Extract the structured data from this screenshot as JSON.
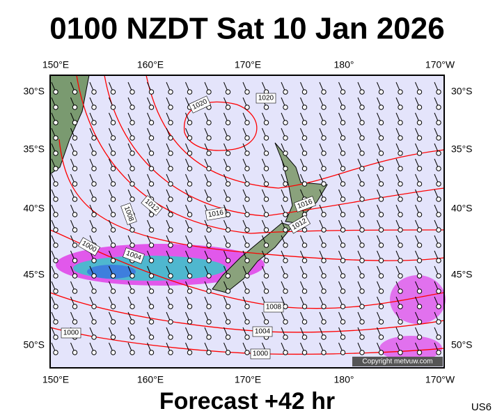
{
  "header": {
    "title": "0100 NZDT Sat 10 Jan 2026"
  },
  "map": {
    "lon_labels_top": [
      "150°E",
      "160°E",
      "170°E",
      "180°",
      "170°W"
    ],
    "lon_labels_bottom": [
      "150°E",
      "160°E",
      "170°E",
      "180°",
      "170°W"
    ],
    "lat_labels_left": [
      "30°S",
      "35°S",
      "40°S",
      "45°S",
      "50°S"
    ],
    "lat_labels_right": [
      "30°S",
      "35°S",
      "40°S",
      "45°S",
      "50°S"
    ],
    "isobar_labels": [
      "1020",
      "1020",
      "1012",
      "1008",
      "1016",
      "1016",
      "1012",
      "1000",
      "1004",
      "1008",
      "1004",
      "1000",
      "1000"
    ],
    "copyright": "Copyright metvuw.com"
  },
  "footer": {
    "forecast": "Forecast +42 hr",
    "code": "US6"
  }
}
